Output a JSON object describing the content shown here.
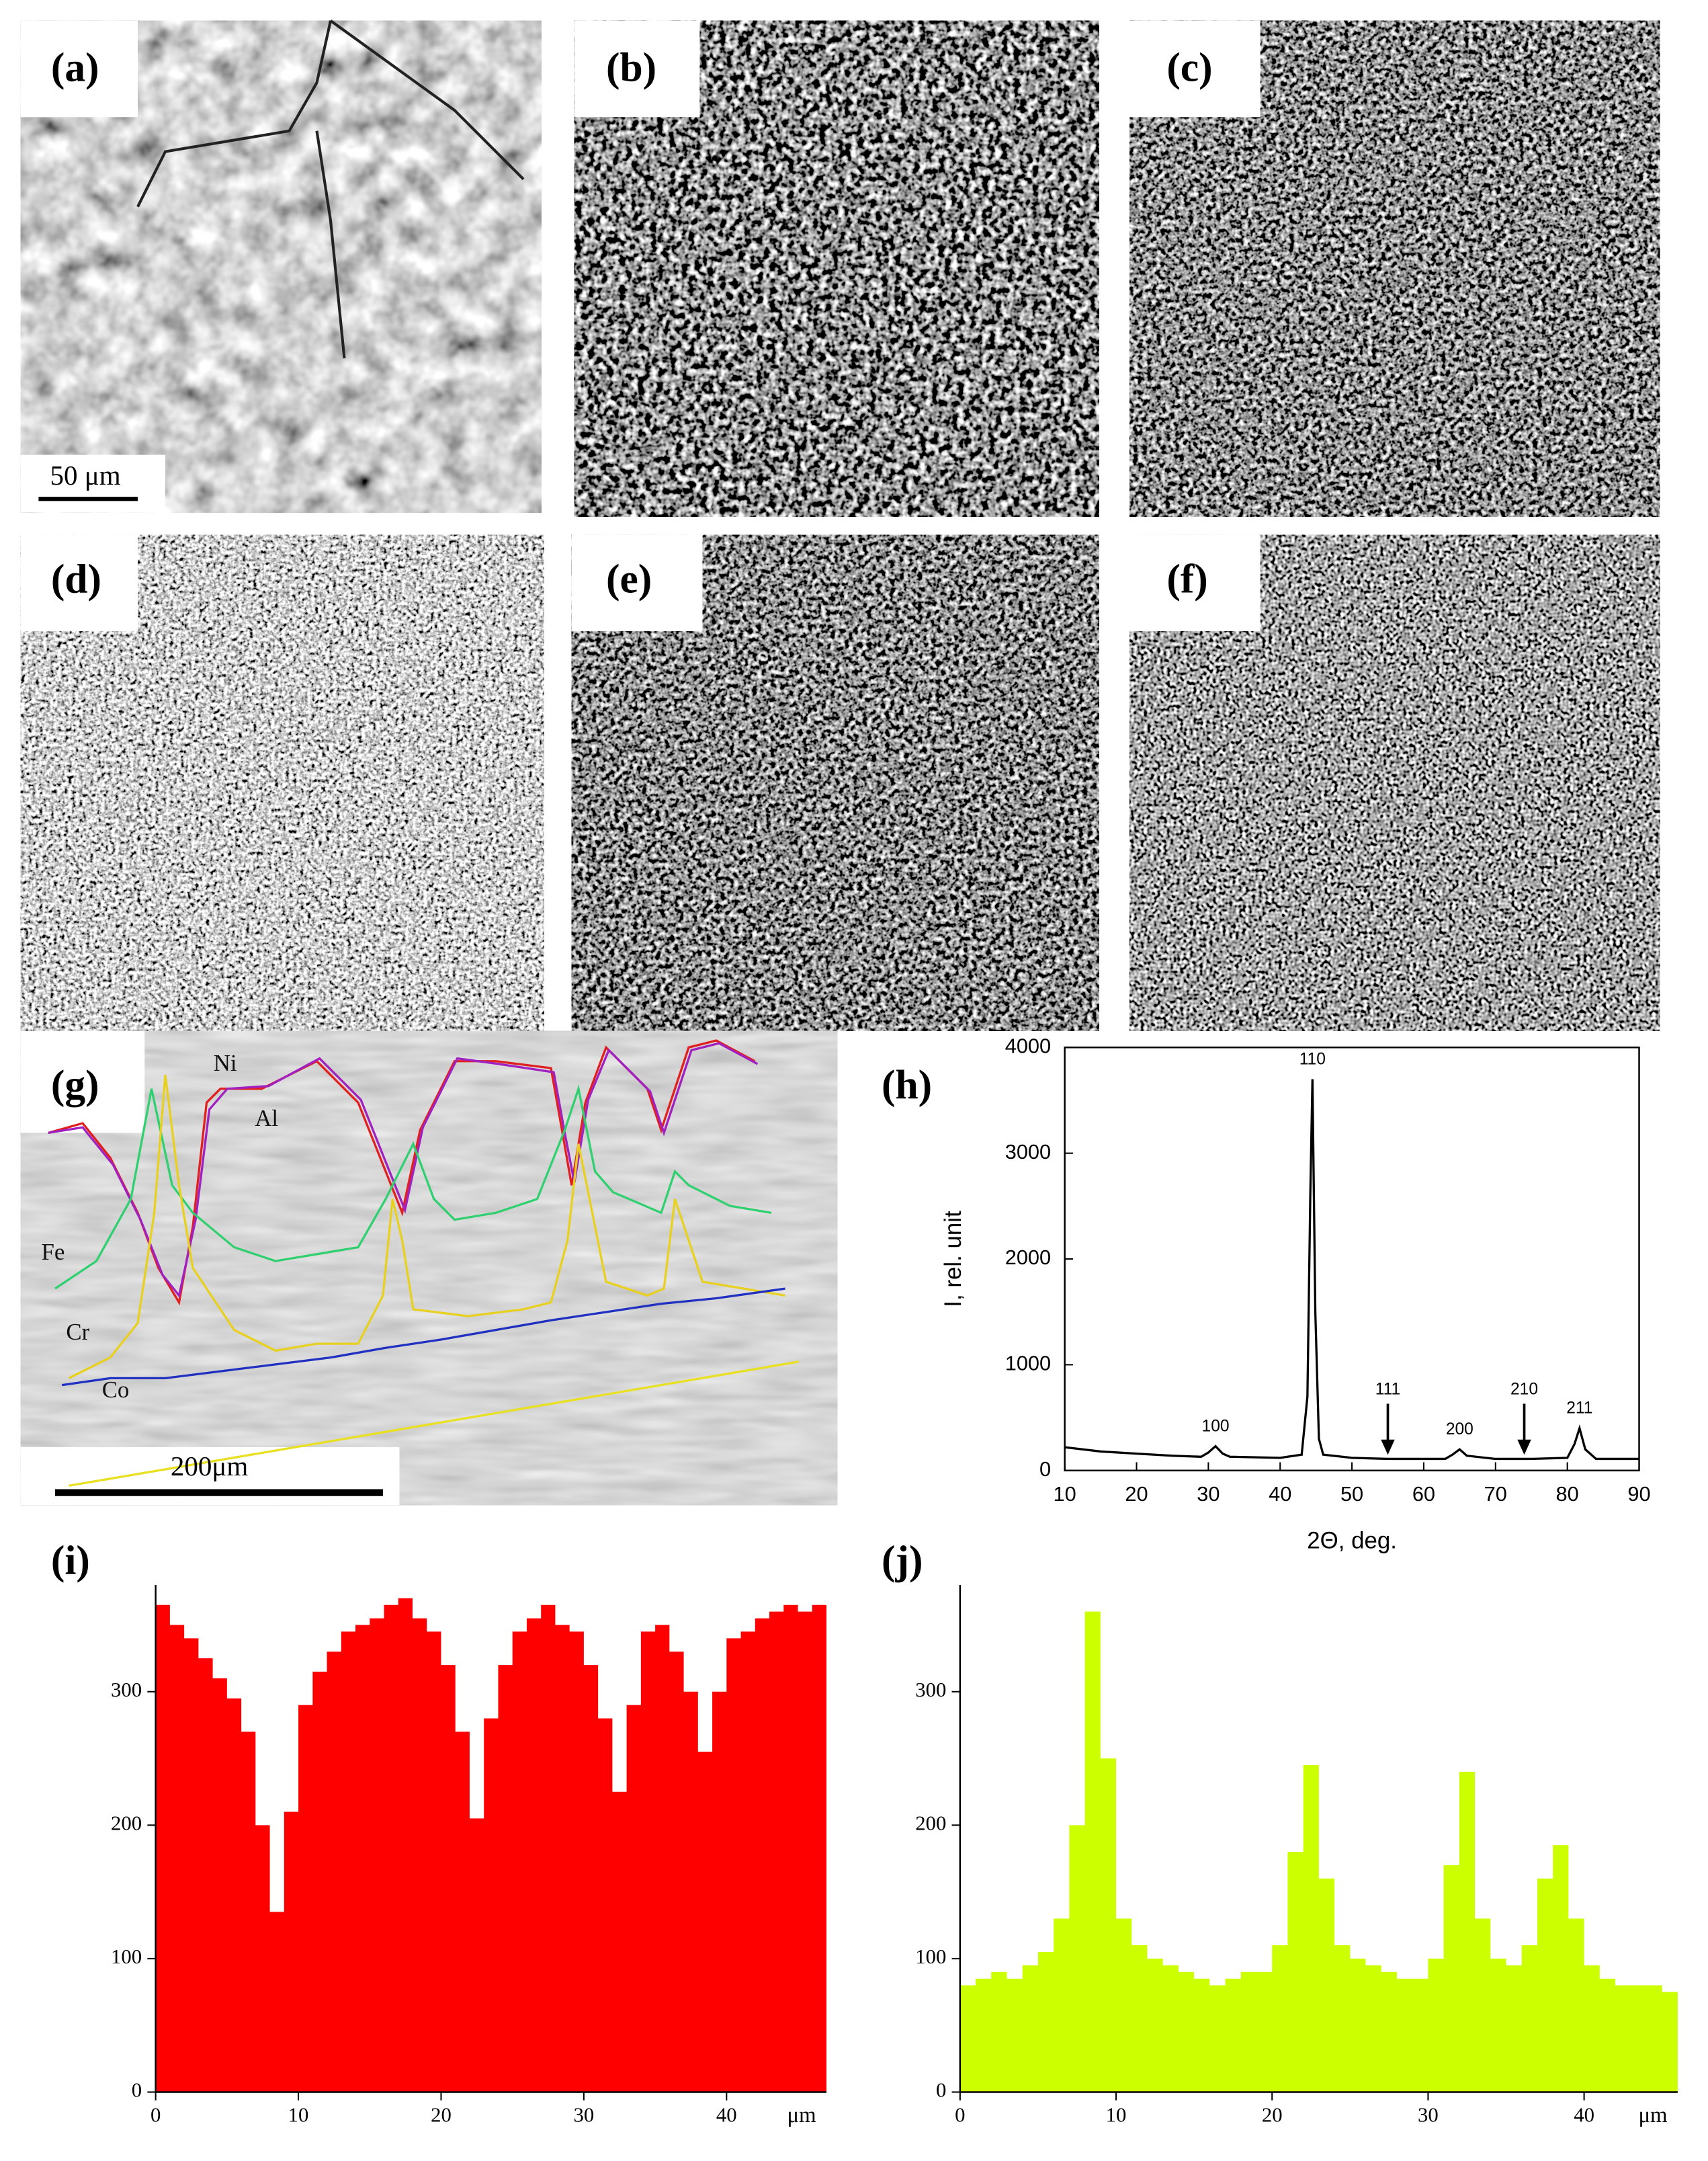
{
  "panels": [
    {
      "label": "(a)",
      "scale_bar": "50 μm"
    },
    {
      "label": "(b)"
    },
    {
      "label": "(c)"
    },
    {
      "label": "(d)"
    },
    {
      "label": "(e)"
    },
    {
      "label": "(f)"
    },
    {
      "label": "(g)",
      "scale_bar": "200μm",
      "element_labels": [
        "Ni",
        "Al",
        "Fe",
        "Cr",
        "Co"
      ]
    }
  ],
  "chart_data": [
    {
      "type": "line",
      "label": "(h)",
      "xlabel": "2Θ, deg.",
      "ylabel": "I, rel. unit",
      "color": "#000000",
      "x": [
        10,
        15,
        20,
        25,
        29,
        30,
        31,
        32,
        33,
        40,
        43,
        43.8,
        44.2,
        44.5,
        44.9,
        45.4,
        46,
        50,
        55,
        60,
        63,
        64,
        65,
        66,
        70,
        75,
        80,
        81,
        81.7,
        82.5,
        84,
        90
      ],
      "values": [
        220,
        180,
        160,
        140,
        130,
        170,
        230,
        160,
        130,
        120,
        150,
        700,
        2600,
        3700,
        1500,
        300,
        150,
        120,
        110,
        110,
        110,
        150,
        200,
        140,
        110,
        110,
        120,
        250,
        400,
        200,
        110,
        110
      ],
      "xlim": [
        10,
        90
      ],
      "ylim": [
        0,
        4000
      ],
      "xticks": [
        10,
        20,
        30,
        40,
        50,
        60,
        70,
        80,
        90
      ],
      "yticks": [
        0,
        1000,
        2000,
        3000,
        4000
      ],
      "peak_labels": [
        {
          "label": "100",
          "x": 31,
          "y": 230,
          "arrow": false
        },
        {
          "label": "110",
          "x": 44.5,
          "y": 3700,
          "arrow": false
        },
        {
          "label": "111",
          "x": 55,
          "y": 110,
          "arrow": true
        },
        {
          "label": "200",
          "x": 65,
          "y": 200,
          "arrow": false
        },
        {
          "label": "210",
          "x": 74,
          "y": 110,
          "arrow": true
        },
        {
          "label": "211",
          "x": 81.7,
          "y": 400,
          "arrow": false
        }
      ]
    },
    {
      "type": "area",
      "label": "(i)",
      "x_unit": "μm",
      "color": "#ff0000",
      "x": [
        0,
        1,
        2,
        3,
        4,
        5,
        6,
        7,
        8,
        9,
        10,
        11,
        12,
        13,
        14,
        15,
        16,
        17,
        18,
        19,
        20,
        21,
        22,
        23,
        24,
        25,
        26,
        27,
        28,
        29,
        30,
        31,
        32,
        33,
        34,
        35,
        36,
        37,
        38,
        39,
        40,
        41,
        42,
        43,
        44,
        45,
        46,
        47
      ],
      "values": [
        365,
        350,
        340,
        325,
        310,
        295,
        270,
        200,
        135,
        210,
        290,
        315,
        330,
        345,
        350,
        355,
        365,
        370,
        355,
        345,
        320,
        270,
        205,
        280,
        320,
        345,
        355,
        365,
        350,
        345,
        320,
        280,
        225,
        290,
        345,
        350,
        330,
        300,
        255,
        300,
        340,
        345,
        355,
        360,
        365,
        360,
        365,
        365
      ],
      "xlim": [
        0,
        47
      ],
      "ylim": [
        0,
        380
      ],
      "xticks": [
        0,
        10,
        20,
        30,
        40
      ],
      "yticks": [
        0,
        100,
        200,
        300
      ]
    },
    {
      "type": "area",
      "label": "(j)",
      "x_unit": "μm",
      "color": "#ccff00",
      "x": [
        0,
        1,
        2,
        3,
        4,
        5,
        6,
        7,
        8,
        9,
        10,
        11,
        12,
        13,
        14,
        15,
        16,
        17,
        18,
        19,
        20,
        21,
        22,
        23,
        24,
        25,
        26,
        27,
        28,
        29,
        30,
        31,
        32,
        33,
        34,
        35,
        36,
        37,
        38,
        39,
        40,
        41,
        42,
        43,
        44,
        45,
        46
      ],
      "values": [
        80,
        85,
        90,
        85,
        95,
        105,
        130,
        200,
        360,
        250,
        130,
        110,
        100,
        95,
        90,
        85,
        80,
        85,
        90,
        90,
        110,
        180,
        245,
        160,
        110,
        100,
        95,
        90,
        85,
        85,
        100,
        170,
        240,
        130,
        100,
        95,
        110,
        160,
        185,
        130,
        95,
        85,
        80,
        80,
        80,
        75,
        75
      ],
      "xlim": [
        0,
        46
      ],
      "ylim": [
        0,
        380
      ],
      "xticks": [
        0,
        10,
        20,
        30,
        40
      ],
      "yticks": [
        0,
        100,
        200,
        300
      ]
    }
  ]
}
